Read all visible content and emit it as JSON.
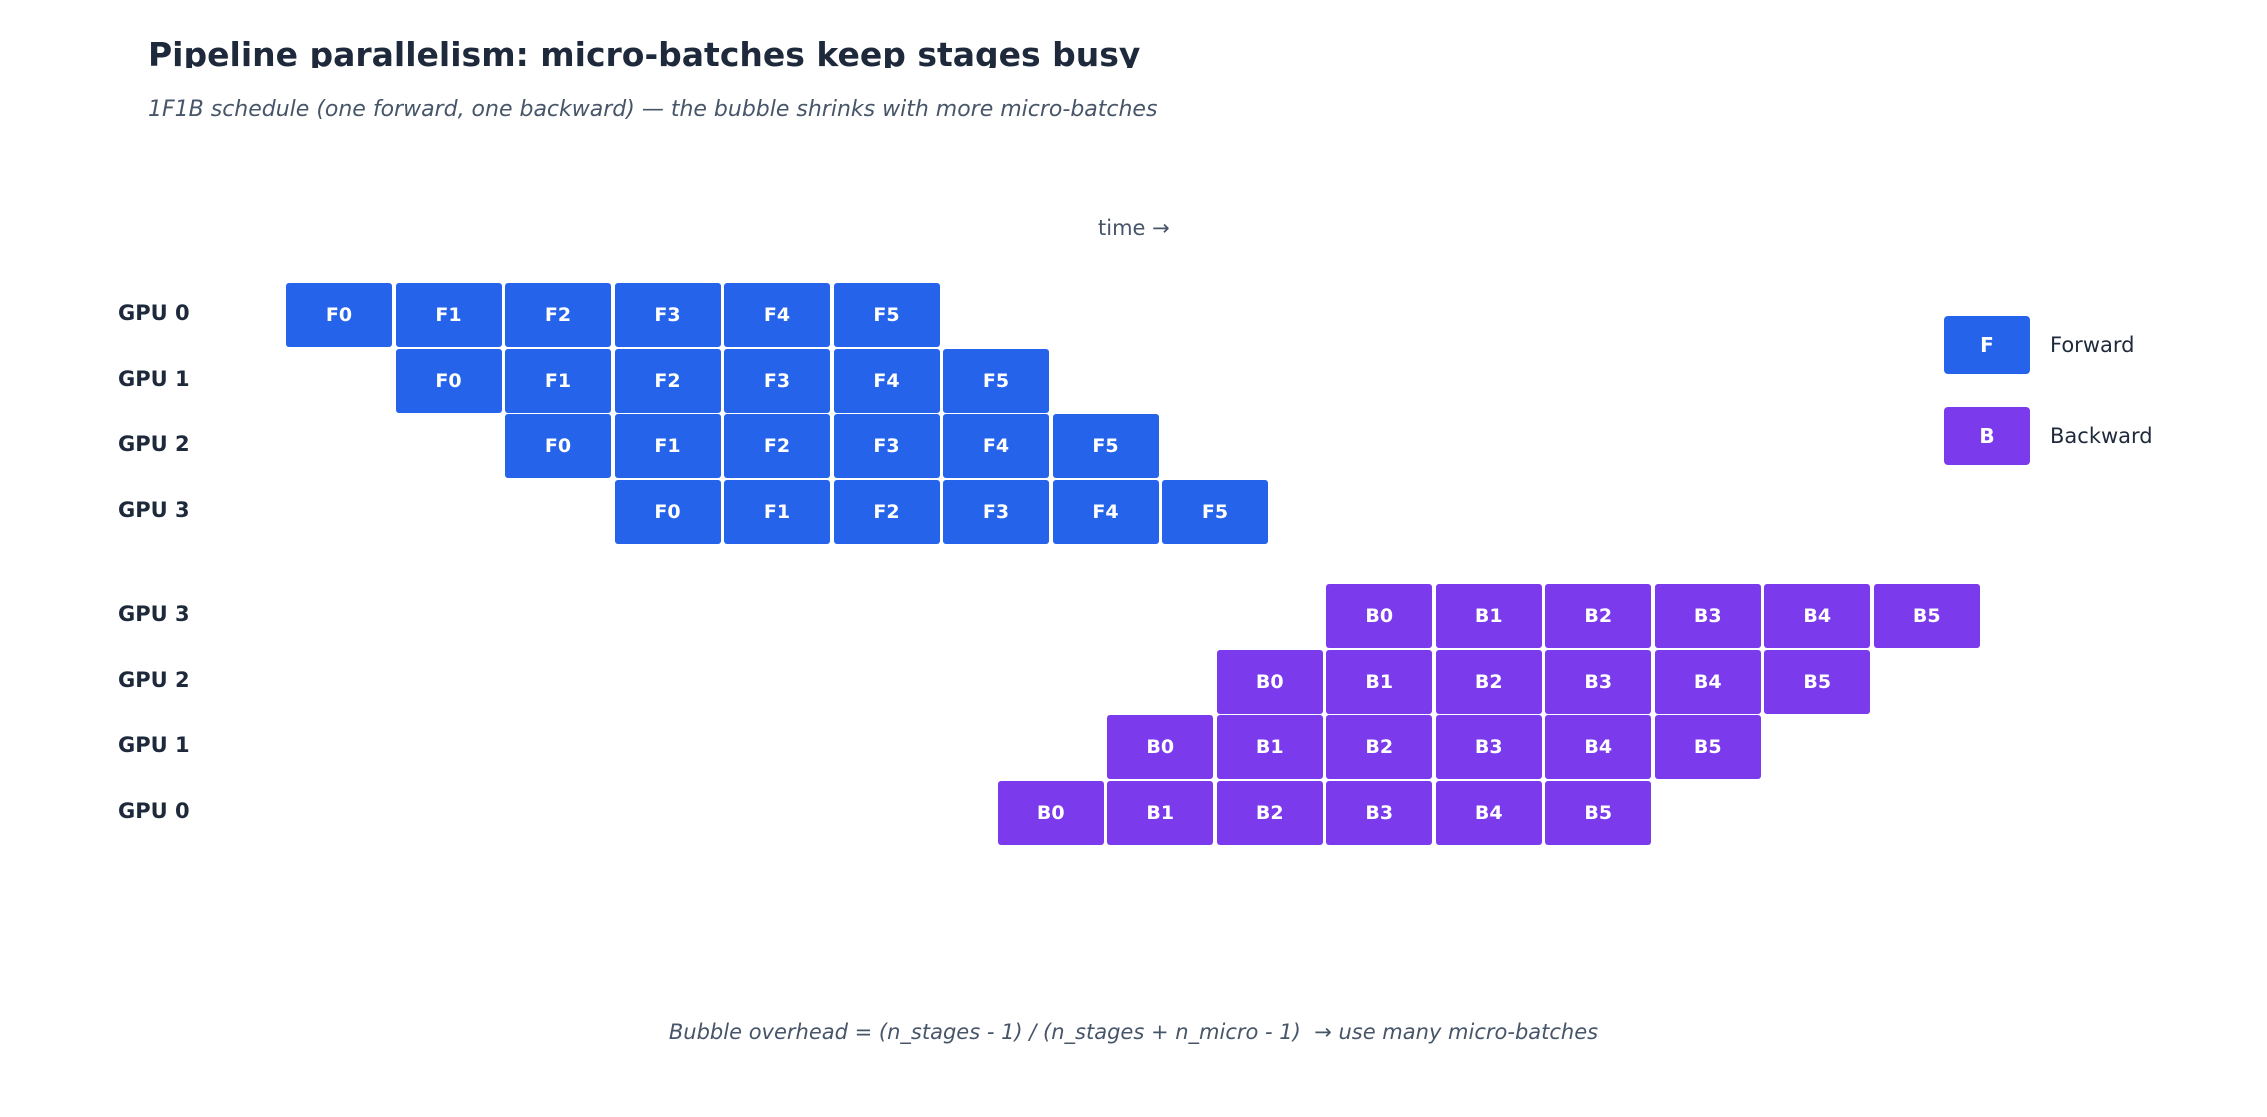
{
  "title": "Pipeline parallelism: micro-batches keep stages busy",
  "subtitle": "1F1B schedule (one forward, one backward) — the bubble shrinks with more micro-batches",
  "time_label": "time →",
  "colors": {
    "forward": "#2563eb",
    "backward": "#7c3aed",
    "text": "#1e293b",
    "muted": "#475569"
  },
  "forward_rows": [
    {
      "label": "GPU 0",
      "start_slot": 0,
      "blocks": [
        "F0",
        "F1",
        "F2",
        "F3",
        "F4",
        "F5"
      ]
    },
    {
      "label": "GPU 1",
      "start_slot": 1,
      "blocks": [
        "F0",
        "F1",
        "F2",
        "F3",
        "F4",
        "F5"
      ]
    },
    {
      "label": "GPU 2",
      "start_slot": 2,
      "blocks": [
        "F0",
        "F1",
        "F2",
        "F3",
        "F4",
        "F5"
      ]
    },
    {
      "label": "GPU 3",
      "start_slot": 3,
      "blocks": [
        "F0",
        "F1",
        "F2",
        "F3",
        "F4",
        "F5"
      ]
    }
  ],
  "backward_rows": [
    {
      "label": "GPU 3",
      "start_slot": 9.5,
      "blocks": [
        "B0",
        "B1",
        "B2",
        "B3",
        "B4",
        "B5"
      ]
    },
    {
      "label": "GPU 2",
      "start_slot": 8.5,
      "blocks": [
        "B0",
        "B1",
        "B2",
        "B3",
        "B4",
        "B5"
      ]
    },
    {
      "label": "GPU 1",
      "start_slot": 7.5,
      "blocks": [
        "B0",
        "B1",
        "B2",
        "B3",
        "B4",
        "B5"
      ]
    },
    {
      "label": "GPU 0",
      "start_slot": 6.5,
      "blocks": [
        "B0",
        "B1",
        "B2",
        "B3",
        "B4",
        "B5"
      ]
    }
  ],
  "legend": [
    {
      "key": "F",
      "label": "Forward",
      "kind": "fwd"
    },
    {
      "key": "B",
      "label": "Backward",
      "kind": "bwd"
    }
  ],
  "footer": "Bubble overhead = (n_stages - 1) / (n_stages + n_micro - 1)  → use many micro-batches"
}
